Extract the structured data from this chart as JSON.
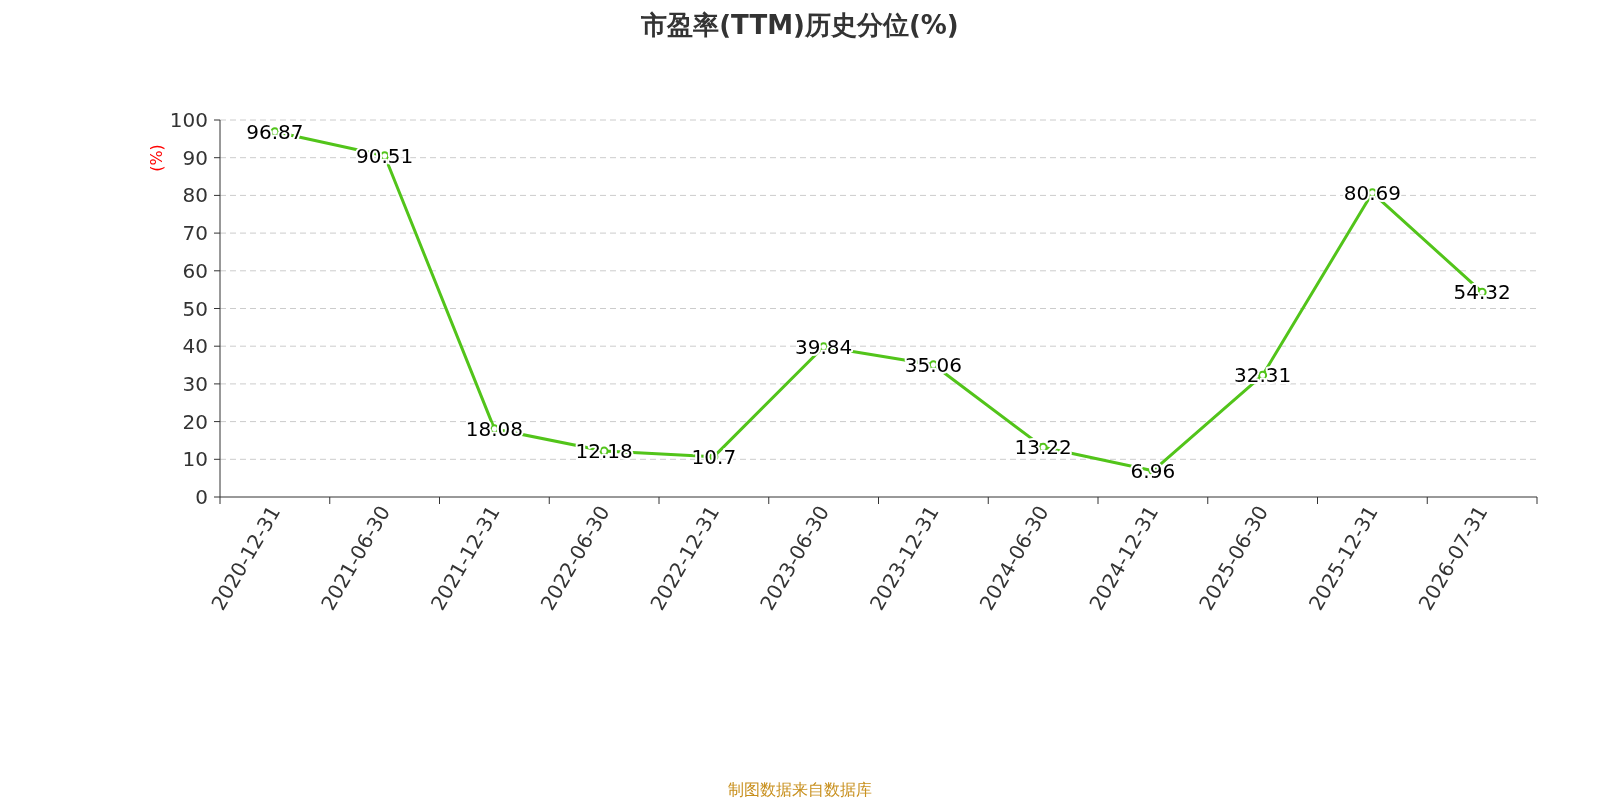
{
  "chart_data": {
    "type": "line",
    "title": "市盈率(TTM)历史分位(%)",
    "ylabel": "(%)",
    "categories": [
      "2020-12-31",
      "2021-06-30",
      "2021-12-31",
      "2022-06-30",
      "2022-12-31",
      "2023-06-30",
      "2023-12-31",
      "2024-06-30",
      "2024-12-31",
      "2025-06-30",
      "2025-12-31",
      "2026-07-31"
    ],
    "series": [
      {
        "color": "#52c41a",
        "values": [
          96.87,
          90.51,
          18.08,
          12.18,
          10.7,
          39.84,
          35.06,
          13.22,
          6.96,
          32.31,
          80.69,
          54.32
        ]
      }
    ],
    "ylim": [
      0,
      100
    ],
    "yticks": [
      0,
      10,
      20,
      30,
      40,
      50,
      60,
      70,
      80,
      90,
      100
    ],
    "grid": "y",
    "marker": "circle",
    "line_style": "solid",
    "data_labels": true,
    "annotations": [
      "制图数据来自数据库"
    ]
  }
}
